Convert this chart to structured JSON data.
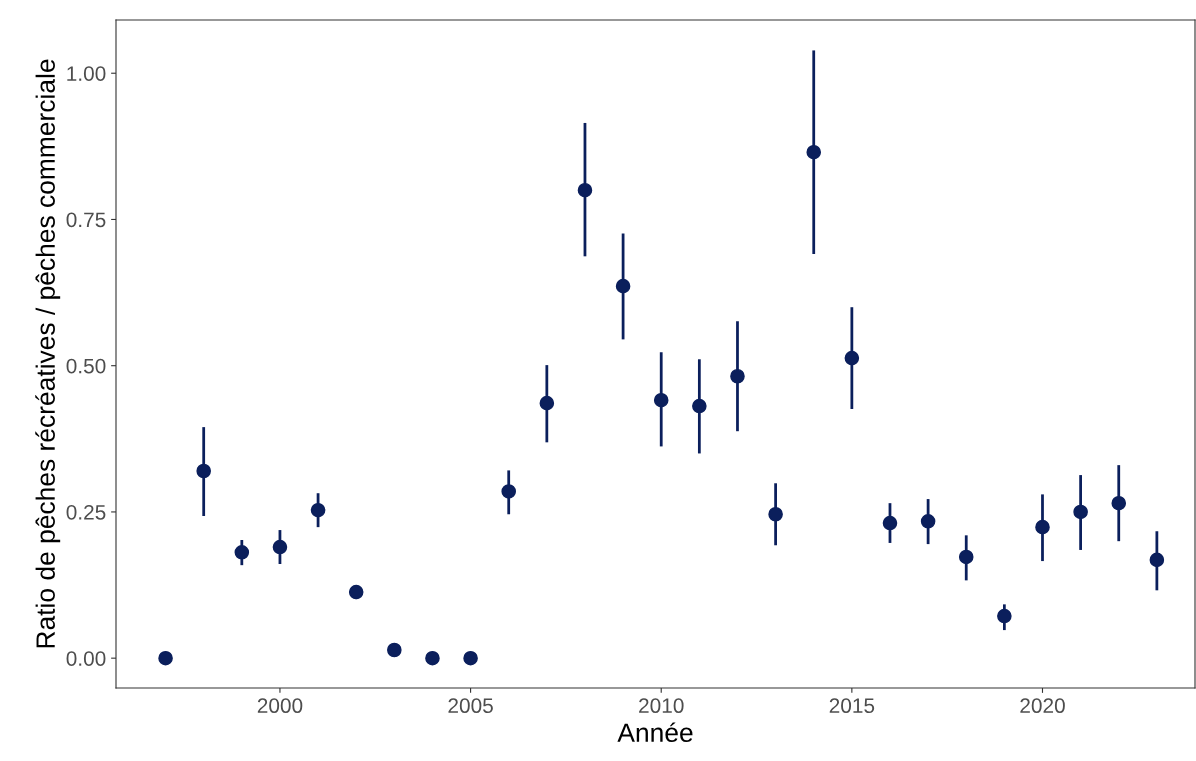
{
  "chart_data": {
    "type": "scatter",
    "xlabel": "Année",
    "ylabel": "Ratio de pêches récréatives / pêches commerciale",
    "x": [
      1997,
      1998,
      1999,
      2000,
      2001,
      2002,
      2003,
      2004,
      2005,
      2006,
      2007,
      2008,
      2009,
      2010,
      2011,
      2012,
      2013,
      2014,
      2015,
      2016,
      2017,
      2018,
      2019,
      2020,
      2021,
      2022,
      2023
    ],
    "series": [
      {
        "color": "#0b1f5c",
        "values": [
          0,
          0.32,
          0.181,
          0.19,
          0.253,
          0.113,
          0.014,
          0,
          0,
          0.285,
          0.436,
          0.8,
          0.636,
          0.441,
          0.431,
          0.482,
          0.246,
          0.865,
          0.513,
          0.231,
          0.234,
          0.173,
          0.072,
          0.224,
          0.25,
          0.265,
          0.168
        ],
        "errors": [
          null,
          [
            0.243,
            0.395
          ],
          [
            0.159,
            0.202
          ],
          [
            0.161,
            0.219
          ],
          [
            0.224,
            0.282
          ],
          [
            0.101,
            0.123
          ],
          null,
          null,
          null,
          [
            0.246,
            0.321
          ],
          [
            0.369,
            0.501
          ],
          [
            0.687,
            0.915
          ],
          [
            0.545,
            0.726
          ],
          [
            0.362,
            0.523
          ],
          [
            0.35,
            0.511
          ],
          [
            0.388,
            0.576
          ],
          [
            0.193,
            0.299
          ],
          [
            0.691,
            1.039
          ],
          [
            0.426,
            0.6
          ],
          [
            0.197,
            0.265
          ],
          [
            0.195,
            0.272
          ],
          [
            0.133,
            0.21
          ],
          [
            0.048,
            0.092
          ],
          [
            0.166,
            0.28
          ],
          [
            0.185,
            0.313
          ],
          [
            0.2,
            0.33
          ],
          [
            0.116,
            0.217
          ]
        ]
      }
    ],
    "xlim": [
      1995.7,
      2024.0
    ],
    "xticks": [
      2000,
      2005,
      2010,
      2015,
      2020
    ],
    "ylim": [
      -0.051,
      1.091
    ],
    "yticks": [
      {
        "value": 0,
        "label": "0.00"
      },
      {
        "value": 0.25,
        "label": "0.25"
      },
      {
        "value": 0.5,
        "label": "0.50"
      },
      {
        "value": 0.75,
        "label": "0.75"
      },
      {
        "value": 1,
        "label": "1.00"
      }
    ],
    "grid": false,
    "marker": "circle"
  }
}
